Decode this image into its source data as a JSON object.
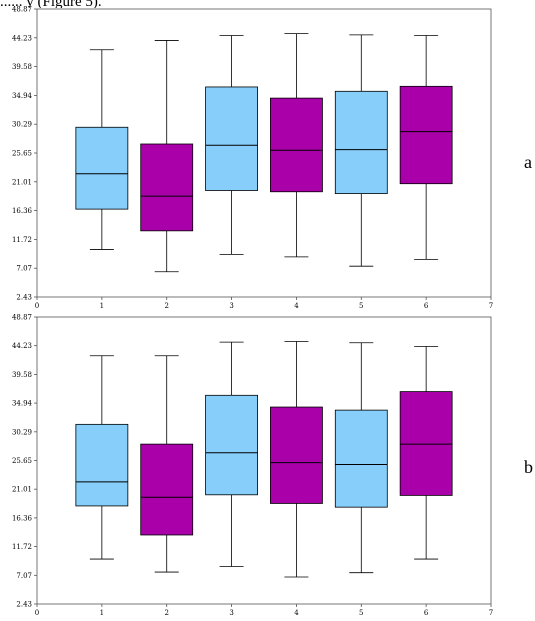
{
  "caption": "...... y (Figure 5).",
  "colors": {
    "light": "#87cefa",
    "dark": "#aa00aa"
  },
  "chart_data": [
    {
      "type": "box",
      "panel_label": "a",
      "ylim": [
        2.43,
        48.87
      ],
      "xlim": [
        0,
        7
      ],
      "yticks": [
        2.43,
        7.07,
        11.72,
        16.36,
        21.01,
        25.65,
        30.29,
        34.94,
        39.58,
        44.23,
        48.87
      ],
      "xticks": [
        0,
        1,
        2,
        3,
        4,
        5,
        6,
        7
      ],
      "boxes": [
        {
          "x": 1,
          "min": 10.1,
          "q1": 16.6,
          "median": 22.3,
          "q3": 29.8,
          "max": 42.3,
          "color": "light"
        },
        {
          "x": 2,
          "min": 6.5,
          "q1": 13.1,
          "median": 18.7,
          "q3": 27.1,
          "max": 43.8,
          "color": "dark"
        },
        {
          "x": 3,
          "min": 9.3,
          "q1": 19.6,
          "median": 26.9,
          "q3": 36.3,
          "max": 44.6,
          "color": "light"
        },
        {
          "x": 4,
          "min": 8.9,
          "q1": 19.4,
          "median": 26.1,
          "q3": 34.5,
          "max": 44.9,
          "color": "dark"
        },
        {
          "x": 5,
          "min": 7.4,
          "q1": 19.1,
          "median": 26.2,
          "q3": 35.6,
          "max": 44.7,
          "color": "light"
        },
        {
          "x": 6,
          "min": 8.5,
          "q1": 20.7,
          "median": 29.1,
          "q3": 36.4,
          "max": 44.6,
          "color": "dark"
        }
      ]
    },
    {
      "type": "box",
      "panel_label": "b",
      "ylim": [
        2.43,
        48.87
      ],
      "xlim": [
        0,
        7
      ],
      "yticks": [
        2.43,
        7.07,
        11.72,
        16.36,
        21.01,
        25.65,
        30.29,
        34.94,
        39.58,
        44.23,
        48.87
      ],
      "xticks": [
        0,
        1,
        2,
        3,
        4,
        5,
        6,
        7
      ],
      "boxes": [
        {
          "x": 1,
          "min": 9.7,
          "q1": 18.3,
          "median": 22.2,
          "q3": 31.5,
          "max": 42.6,
          "color": "light"
        },
        {
          "x": 2,
          "min": 7.6,
          "q1": 13.6,
          "median": 19.7,
          "q3": 28.3,
          "max": 42.6,
          "color": "dark"
        },
        {
          "x": 3,
          "min": 8.5,
          "q1": 20.1,
          "median": 26.9,
          "q3": 36.2,
          "max": 44.8,
          "color": "light"
        },
        {
          "x": 4,
          "min": 6.8,
          "q1": 18.7,
          "median": 25.3,
          "q3": 34.3,
          "max": 44.9,
          "color": "dark"
        },
        {
          "x": 5,
          "min": 7.5,
          "q1": 18.1,
          "median": 25.0,
          "q3": 33.8,
          "max": 44.7,
          "color": "light"
        },
        {
          "x": 6,
          "min": 9.7,
          "q1": 20.0,
          "median": 28.3,
          "q3": 36.8,
          "max": 44.1,
          "color": "dark"
        }
      ]
    }
  ]
}
